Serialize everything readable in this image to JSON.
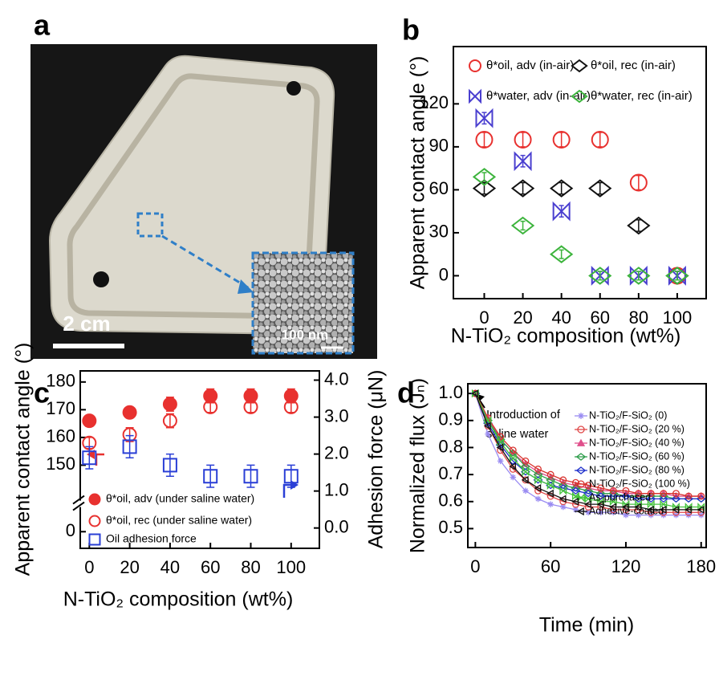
{
  "panel_labels": [
    "a",
    "b",
    "c",
    "d"
  ],
  "photo": {
    "scale_bar": "2 cm",
    "inset_scale_bar": "100 nm"
  },
  "chart_data": [
    {
      "type": "scatter",
      "xlabel": "N-TiO₂ composition (wt%)",
      "ylabel": "Apparent contact angle (°)",
      "x": [
        0,
        20,
        40,
        60,
        80,
        100
      ],
      "xlim": [
        -16,
        115
      ],
      "xticks": [
        0,
        20,
        40,
        60,
        80,
        100
      ],
      "ylim": [
        -16,
        160
      ],
      "yticks": [
        0,
        30,
        60,
        90,
        120
      ],
      "grid": false,
      "legend": "top",
      "series": [
        {
          "name": "θ*oil, adv (in-air)",
          "color": "#e8312f",
          "marker": "circle",
          "filled": false,
          "values": [
            95,
            95,
            95,
            95,
            65,
            0
          ],
          "errors": [
            5,
            5,
            5,
            5,
            5,
            3
          ]
        },
        {
          "name": "θ*oil, rec (in-air)",
          "color": "#111111",
          "marker": "diamond",
          "filled": false,
          "values": [
            61,
            61,
            61,
            61,
            35,
            0
          ],
          "errors": [
            4,
            4,
            4,
            4,
            4,
            3
          ]
        },
        {
          "name": "θ*water, adv (in-air)",
          "color": "#4a3fd0",
          "marker": "bowtie",
          "filled": false,
          "values": [
            110,
            80,
            45,
            0,
            0,
            0
          ],
          "errors": [
            4,
            4,
            4,
            3,
            3,
            3
          ]
        },
        {
          "name": "θ*water, rec (in-air)",
          "color": "#3cb43c",
          "marker": "diamond",
          "filled": false,
          "values": [
            69,
            35,
            15,
            0,
            0,
            0
          ],
          "errors": [
            3,
            3,
            3,
            3,
            3,
            3
          ]
        }
      ]
    },
    {
      "type": "scatter",
      "xlabel": "N-TiO₂ composition (wt%)",
      "ylabel": "Apparent contact angle (°)",
      "y2label": "Adhesion force (μN)",
      "x": [
        0,
        20,
        40,
        60,
        80,
        100
      ],
      "xlim": [
        -4.5,
        114
      ],
      "xticks": [
        0,
        20,
        40,
        60,
        80,
        100
      ],
      "ylim": [
        -6,
        184
      ],
      "ybreak": [
        5,
        131
      ],
      "yticks": [
        0,
        150,
        160,
        170,
        180
      ],
      "y2lim": [
        -0.55,
        4.25
      ],
      "y2ticks": [
        {
          "value": 0,
          "label": "0.0"
        },
        {
          "value": 1,
          "label": "1.0"
        },
        {
          "value": 2,
          "label": "2.0"
        },
        {
          "value": 3,
          "label": "3.0"
        },
        {
          "value": 4,
          "label": "4.0"
        }
      ],
      "grid": false,
      "legend": "lower left",
      "series": [
        {
          "name": "θ*oil, adv (under saline water)",
          "color": "#e8312f",
          "marker": "circle",
          "filled": true,
          "values": [
            166,
            169,
            172,
            175,
            175,
            175
          ],
          "errors": [
            2,
            1.5,
            2.5,
            2.5,
            2.5,
            2.5
          ]
        },
        {
          "name": "θ*oil, rec (under saline water)",
          "color": "#e8312f",
          "marker": "circle",
          "filled": false,
          "values": [
            158,
            161,
            166,
            171,
            171,
            171
          ],
          "errors": [
            2,
            2.5,
            2.5,
            2,
            2,
            2
          ]
        },
        {
          "name": "Oil adhesion force",
          "color": "#2a3fd6",
          "marker": "square",
          "filled": false,
          "axis": "y2",
          "values": [
            1.9,
            2.2,
            1.7,
            1.4,
            1.4,
            1.4
          ],
          "errors": [
            0.3,
            0.3,
            0.3,
            0.3,
            0.3,
            0.3
          ]
        }
      ]
    },
    {
      "type": "line",
      "xlabel": "Time (min)",
      "ylabel": "Normalized flux (Jₙ)",
      "annotations": [
        "Introduction of",
        "saline water"
      ],
      "x": [
        0,
        10,
        20,
        30,
        40,
        50,
        60,
        70,
        80,
        90,
        100,
        110,
        120,
        130,
        140,
        150,
        160,
        170,
        180
      ],
      "xlim": [
        -6,
        184
      ],
      "xticks": [
        0,
        60,
        120,
        180
      ],
      "ylim": [
        0.43,
        1.036
      ],
      "yticks": [
        0.5,
        0.6,
        0.7,
        0.8,
        0.9,
        {
          "value": 1,
          "label": "1.0"
        }
      ],
      "grid": false,
      "legend": "upper right",
      "series": [
        {
          "name": "N-TiO₂/F-SiO₂ (0)",
          "color": "#9a8cf2",
          "marker": "star",
          "filled": false,
          "values": [
            1.0,
            0.85,
            0.75,
            0.69,
            0.64,
            0.61,
            0.59,
            0.58,
            0.57,
            0.56,
            0.56,
            0.56,
            0.55,
            0.55,
            0.55,
            0.55,
            0.55,
            0.55,
            0.55
          ]
        },
        {
          "name": "N-TiO₂/F-SiO₂ (20 %)",
          "color": "#e04848",
          "marker": "circle",
          "filled": false,
          "values": [
            1.0,
            0.88,
            0.79,
            0.72,
            0.68,
            0.64,
            0.62,
            0.6,
            0.59,
            0.58,
            0.58,
            0.57,
            0.57,
            0.57,
            0.56,
            0.56,
            0.56,
            0.56,
            0.56
          ]
        },
        {
          "name": "N-TiO₂/F-SiO₂ (40 %)",
          "color": "#e0508c",
          "marker": "triangle",
          "filled": true,
          "values": [
            1.0,
            0.91,
            0.83,
            0.78,
            0.74,
            0.71,
            0.69,
            0.67,
            0.66,
            0.65,
            0.64,
            0.64,
            0.63,
            0.63,
            0.63,
            0.63,
            0.62,
            0.62,
            0.62
          ]
        },
        {
          "name": "N-TiO₂/F-SiO₂ (60 %)",
          "color": "#2f9e4c",
          "marker": "diamond",
          "filled": false,
          "values": [
            1.0,
            0.9,
            0.83,
            0.78,
            0.73,
            0.7,
            0.68,
            0.66,
            0.65,
            0.64,
            0.63,
            0.63,
            0.62,
            0.62,
            0.62,
            0.62,
            0.61,
            0.61,
            0.61
          ]
        },
        {
          "name": "N-TiO₂/F-SiO₂ (80 %)",
          "color": "#2233cc",
          "marker": "diamond",
          "filled": false,
          "values": [
            1.0,
            0.89,
            0.81,
            0.75,
            0.71,
            0.68,
            0.66,
            0.65,
            0.64,
            0.63,
            0.62,
            0.62,
            0.62,
            0.61,
            0.61,
            0.61,
            0.61,
            0.61,
            0.61
          ]
        },
        {
          "name": "N-TiO₂/F-SiO₂ (100 %)",
          "color": "#d8332f",
          "marker": "circle",
          "filled": false,
          "values": [
            1.0,
            0.91,
            0.84,
            0.79,
            0.75,
            0.72,
            0.7,
            0.68,
            0.67,
            0.66,
            0.65,
            0.64,
            0.64,
            0.63,
            0.63,
            0.63,
            0.63,
            0.62,
            0.62
          ]
        },
        {
          "name": "As-purchased",
          "color": "#44c23c",
          "marker": "bowtie",
          "filled": false,
          "values": [
            1.0,
            0.9,
            0.82,
            0.76,
            0.71,
            0.68,
            0.66,
            0.64,
            0.62,
            0.61,
            0.6,
            0.6,
            0.59,
            0.59,
            0.59,
            0.59,
            0.58,
            0.58,
            0.58
          ]
        },
        {
          "name": "Adhesive-coated",
          "color": "#111111",
          "marker": "triangle-left",
          "filled": false,
          "values": [
            1.0,
            0.88,
            0.8,
            0.73,
            0.68,
            0.65,
            0.63,
            0.61,
            0.6,
            0.59,
            0.59,
            0.58,
            0.58,
            0.58,
            0.57,
            0.57,
            0.57,
            0.57,
            0.57
          ]
        }
      ]
    }
  ]
}
